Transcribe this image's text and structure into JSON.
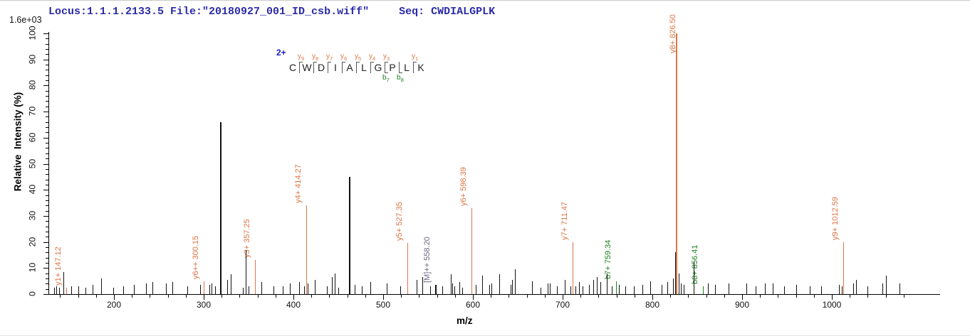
{
  "header": {
    "locus_file": "Locus:1.1.1.2133.5 File:\"20180927_001_ID_csb.wiff\"",
    "seq": "Seq: CWDIALGPLK"
  },
  "sequence_panel": {
    "charge": "2+",
    "residues": [
      "C",
      "W",
      "D",
      "I",
      "A",
      "L",
      "G",
      "P",
      "L",
      "K"
    ],
    "cleavages": [
      {
        "y": "y9",
        "b": null
      },
      {
        "y": "y8",
        "b": null
      },
      {
        "y": "y7",
        "b": null
      },
      {
        "y": "y6",
        "b": null
      },
      {
        "y": "y5",
        "b": null
      },
      {
        "y": "y4",
        "b": null
      },
      {
        "y": "y3",
        "b": "b7"
      },
      {
        "y": null,
        "b": "b8"
      },
      {
        "y": "y1",
        "b": null
      }
    ]
  },
  "colors": {
    "y_ion": "#dc7545",
    "b_ion": "#1e8020",
    "unassigned_peak": "#111111",
    "precursor_label": "#6a6a85",
    "header_blue": "#2b2ba8",
    "charge_blue": "#1a1acc"
  },
  "chart_data": {
    "type": "bar",
    "subtype": "ms2-fragment-stick-spectrum",
    "title": "",
    "xlabel": "m/z",
    "ylabel": "Relative  Intensity (%)",
    "intensity_scale": "1.6e+03",
    "xlim": [
      125,
      1115
    ],
    "ylim": [
      0,
      100
    ],
    "grid": false,
    "x_major_ticks": [
      200,
      300,
      400,
      500,
      600,
      700,
      800,
      900,
      1000
    ],
    "y_major_ticks": [
      0,
      10,
      20,
      30,
      40,
      50,
      60,
      70,
      80,
      90,
      100
    ],
    "series": [
      {
        "name": "y-ions",
        "color": "#dc7545",
        "points": [
          {
            "label": "y1+ 147.12",
            "mz": 147.12,
            "intensity": 2.5
          },
          {
            "label": "y6++ 300.15",
            "mz": 300.15,
            "intensity": 5
          },
          {
            "label": "y3+ 357.25",
            "mz": 357.25,
            "intensity": 13
          },
          {
            "label": "y4+ 414.27",
            "mz": 414.27,
            "intensity": 34
          },
          {
            "label": "y5+ 527.35",
            "mz": 527.35,
            "intensity": 19.5
          },
          {
            "label": "y6+ 598.39",
            "mz": 598.39,
            "intensity": 33
          },
          {
            "label": "y7+ 711.47",
            "mz": 711.47,
            "intensity": 20
          },
          {
            "label": "y8+ 826.50",
            "mz": 826.5,
            "intensity": 100
          },
          {
            "label": "y9+ 1012.59",
            "mz": 1012.59,
            "intensity": 20
          }
        ]
      },
      {
        "name": "b-ions",
        "color": "#1e8020",
        "points": [
          {
            "label": "b7+ 759.34",
            "mz": 759.34,
            "intensity": 5
          },
          {
            "label": "b8+ 856.41",
            "mz": 856.41,
            "intensity": 3
          }
        ]
      },
      {
        "name": "precursor",
        "color": "#111111",
        "label_color": "#6a6a85",
        "points": [
          {
            "label": "[M]++ 558.20",
            "mz": 558.2,
            "intensity": 3.5
          }
        ]
      },
      {
        "name": "unassigned",
        "color": "#111111",
        "points_mz_intensity": [
          [
            133,
            2.5
          ],
          [
            136,
            3
          ],
          [
            139,
            2.5
          ],
          [
            144,
            8.5
          ],
          [
            152,
            3
          ],
          [
            160,
            3
          ],
          [
            168,
            2.5
          ],
          [
            176,
            3.5
          ],
          [
            186,
            6
          ],
          [
            199,
            2.5
          ],
          [
            210,
            3
          ],
          [
            222,
            3.5
          ],
          [
            236,
            4
          ],
          [
            243,
            4.5
          ],
          [
            258,
            4
          ],
          [
            265,
            4.5
          ],
          [
            282,
            3
          ],
          [
            296,
            3.5
          ],
          [
            306,
            3.5
          ],
          [
            309,
            4
          ],
          [
            313,
            3
          ],
          [
            318,
            66
          ],
          [
            326,
            5.5
          ],
          [
            330,
            7.5
          ],
          [
            344,
            2.5
          ],
          [
            347,
            17
          ],
          [
            350,
            3
          ],
          [
            364,
            4.5
          ],
          [
            378,
            3
          ],
          [
            388,
            3
          ],
          [
            396,
            4
          ],
          [
            406,
            4.5
          ],
          [
            412,
            3
          ],
          [
            416,
            4
          ],
          [
            424,
            5.5
          ],
          [
            437,
            3
          ],
          [
            443,
            6.5
          ],
          [
            446,
            8
          ],
          [
            450,
            2.5
          ],
          [
            462,
            45
          ],
          [
            468,
            3.5
          ],
          [
            476,
            3
          ],
          [
            486,
            4.5
          ],
          [
            504,
            4
          ],
          [
            519,
            3
          ],
          [
            537,
            5.5
          ],
          [
            544,
            6.5
          ],
          [
            552,
            3
          ],
          [
            559,
            3.5
          ],
          [
            566,
            3
          ],
          [
            575,
            7.5
          ],
          [
            577,
            4
          ],
          [
            579,
            3
          ],
          [
            585,
            4.5
          ],
          [
            588,
            2.5
          ],
          [
            603,
            3.5
          ],
          [
            610,
            7
          ],
          [
            618,
            3.5
          ],
          [
            621,
            4
          ],
          [
            629,
            7.5
          ],
          [
            642,
            3.5
          ],
          [
            644,
            5.5
          ],
          [
            647,
            9.5
          ],
          [
            666,
            5
          ],
          [
            675,
            2.5
          ],
          [
            683,
            4
          ],
          [
            686,
            4
          ],
          [
            694,
            3
          ],
          [
            702,
            5.5
          ],
          [
            709,
            3
          ],
          [
            714,
            3
          ],
          [
            718,
            4.5
          ],
          [
            722,
            3
          ],
          [
            729,
            3.5
          ],
          [
            734,
            5.5
          ],
          [
            738,
            6.5
          ],
          [
            742,
            4.5
          ],
          [
            749,
            8
          ],
          [
            755,
            3
          ],
          [
            763,
            3.5
          ],
          [
            770,
            3
          ],
          [
            779,
            3
          ],
          [
            789,
            3.5
          ],
          [
            798,
            5
          ],
          [
            810,
            3.5
          ],
          [
            817,
            4.5
          ],
          [
            823,
            6
          ],
          [
            825.5,
            16
          ],
          [
            829,
            8
          ],
          [
            832,
            4
          ],
          [
            835,
            3.5
          ],
          [
            846,
            12.5
          ],
          [
            862,
            4
          ],
          [
            870,
            3.5
          ],
          [
            885,
            4
          ],
          [
            905,
            4
          ],
          [
            915,
            3
          ],
          [
            925,
            4
          ],
          [
            934,
            4
          ],
          [
            947,
            3
          ],
          [
            960,
            3.5
          ],
          [
            975,
            3
          ],
          [
            988,
            3
          ],
          [
            1008,
            3.5
          ],
          [
            1011,
            3
          ],
          [
            1024,
            4
          ],
          [
            1027,
            5.5
          ],
          [
            1040,
            3
          ],
          [
            1056,
            4
          ],
          [
            1060,
            7
          ],
          [
            1075,
            4
          ]
        ]
      }
    ]
  }
}
